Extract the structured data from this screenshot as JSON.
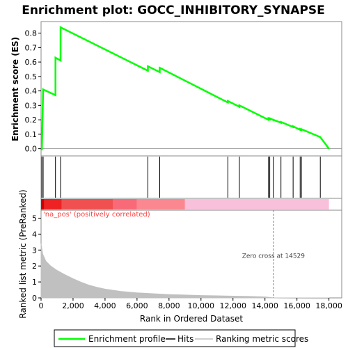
{
  "chart_data": {
    "type": "line",
    "title": "Enrichment plot: GOCC_INHIBITORY_SYNAPSE",
    "xlabel": "Rank in Ordered Dataset",
    "ylabel_top": "Enrichment score (ES)",
    "ylabel_bottom": "Ranked list metric (PreRanked)",
    "xlim": [
      0,
      18800
    ],
    "x_ticks": [
      0,
      2000,
      4000,
      6000,
      8000,
      10000,
      12000,
      14000,
      16000,
      18000
    ],
    "x_tick_labels": [
      "0",
      "2,000",
      "4,000",
      "6,000",
      "8,000",
      "10,000",
      "12,000",
      "14,000",
      "16,000",
      "18,000"
    ],
    "es_ylim": [
      -0.05,
      0.88
    ],
    "es_ticks": [
      0.0,
      0.1,
      0.2,
      0.3,
      0.4,
      0.5,
      0.6,
      0.7,
      0.8
    ],
    "es_tick_labels": [
      "0.0",
      "0.1",
      "0.2",
      "0.3",
      "0.4",
      "0.5",
      "0.6",
      "0.7",
      "0.8"
    ],
    "metric_ylim": [
      0,
      5.5
    ],
    "metric_ticks": [
      0,
      1,
      2,
      3,
      4,
      5
    ],
    "metric_tick_labels": [
      "0",
      "1",
      "2",
      "3",
      "4",
      "5"
    ],
    "hits": [
      50,
      130,
      900,
      1220,
      6680,
      7420,
      11680,
      12400,
      14220,
      14300,
      14520,
      15000,
      15760,
      16200,
      16280,
      17460
    ],
    "series": [
      {
        "name": "Enrichment profile",
        "color": "#00ff00",
        "x": [
          0,
          50,
          130,
          900,
          900,
          1220,
          1220,
          6680,
          6680,
          7420,
          7420,
          11680,
          11680,
          12400,
          12400,
          14220,
          14220,
          14300,
          14300,
          14520,
          14520,
          15000,
          15000,
          15760,
          15760,
          16200,
          16200,
          16280,
          16280,
          17460,
          17460,
          18000
        ],
        "y": [
          0.0,
          -0.01,
          0.41,
          0.37,
          0.63,
          0.61,
          0.84,
          0.54,
          0.57,
          0.53,
          0.56,
          0.32,
          0.33,
          0.29,
          0.3,
          0.2,
          0.21,
          0.205,
          0.21,
          0.198,
          0.2,
          0.18,
          0.185,
          0.15,
          0.155,
          0.13,
          0.135,
          0.13,
          0.135,
          0.08,
          0.08,
          0.0
        ]
      }
    ],
    "metric_profile": {
      "x": [
        0,
        100,
        300,
        600,
        1000,
        1500,
        2000,
        2500,
        3000,
        3500,
        4000,
        5000,
        6000,
        7000,
        8000,
        9000,
        10000,
        11000,
        12000,
        13000,
        14000,
        14529,
        15000,
        16000,
        17000,
        18000
      ],
      "y": [
        3.4,
        2.75,
        2.3,
        2.0,
        1.72,
        1.45,
        1.2,
        0.98,
        0.8,
        0.66,
        0.55,
        0.4,
        0.32,
        0.26,
        0.21,
        0.18,
        0.15,
        0.13,
        0.11,
        0.09,
        0.06,
        0.0,
        -0.01,
        -0.02,
        -0.03,
        -0.04
      ]
    },
    "zero_cross": 14529,
    "zero_cross_label": "Zero cross at 14529",
    "pos_label": "'na_pos' (positively correlated)",
    "colors": {
      "es_line": "#00ff00",
      "hit_line": "#000000",
      "metric_fill": "#c0c0c0",
      "zero_line": "#8080a0",
      "pos_label": "#ff4040"
    },
    "color_bar": [
      {
        "from": 0,
        "to": 200,
        "color": "#d00000"
      },
      {
        "from": 200,
        "to": 1300,
        "color": "#ee2222"
      },
      {
        "from": 1300,
        "to": 4500,
        "color": "#f05050"
      },
      {
        "from": 4500,
        "to": 6000,
        "color": "#f86a78"
      },
      {
        "from": 6000,
        "to": 9000,
        "color": "#fb8890"
      },
      {
        "from": 9000,
        "to": 18000,
        "color": "#f9c0dc"
      }
    ],
    "legend": [
      {
        "label": "Enrichment profile",
        "type": "line",
        "color": "#00ff00"
      },
      {
        "label": "Hits",
        "type": "line",
        "color": "#000000"
      },
      {
        "label": "Ranking metric scores",
        "type": "line",
        "color": "#c0c0c0"
      }
    ]
  }
}
